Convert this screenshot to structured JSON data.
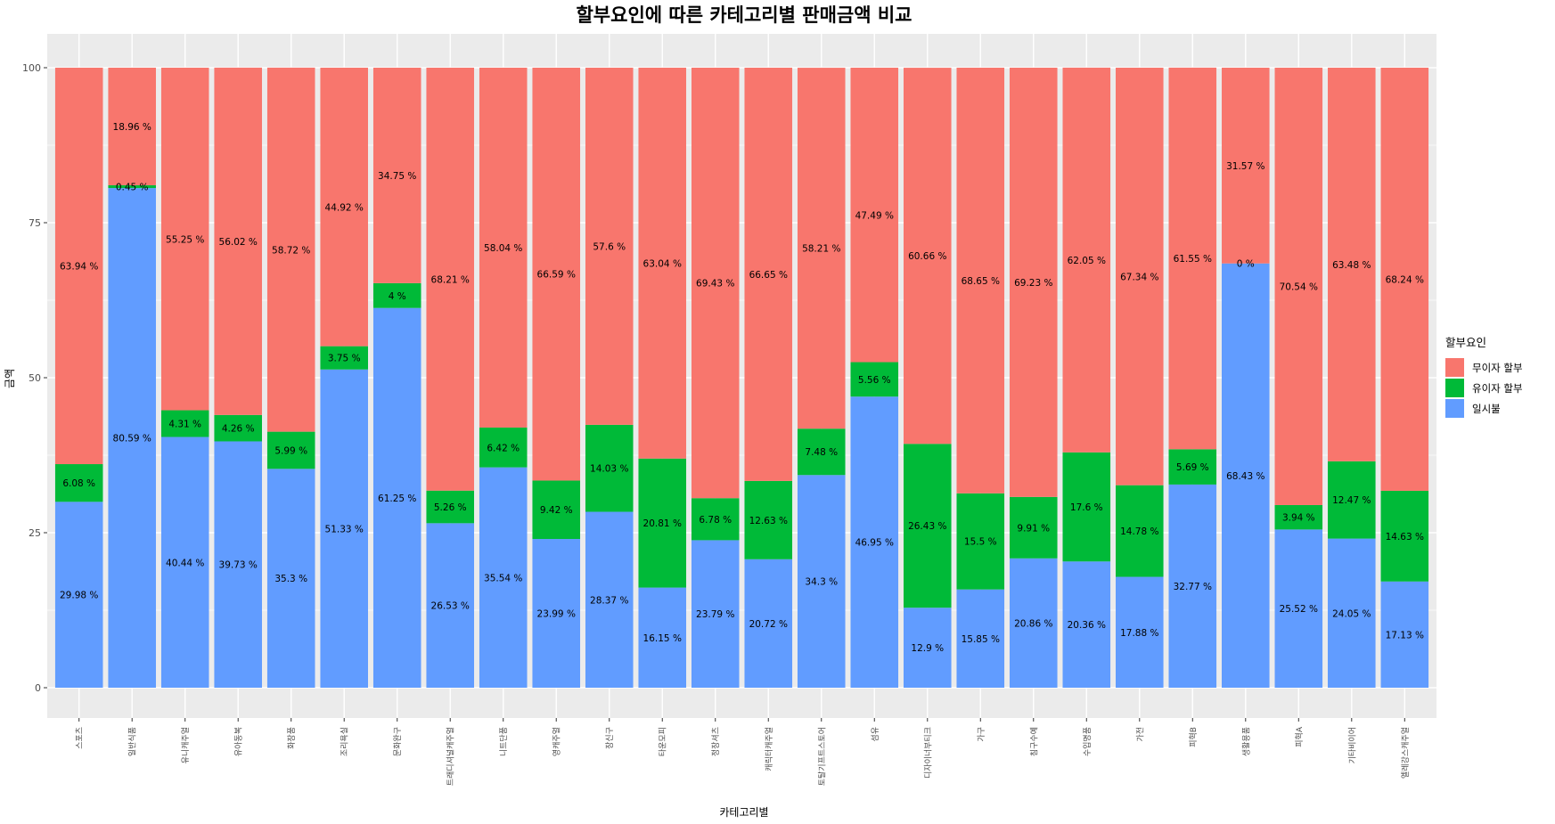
{
  "chart_data": {
    "type": "bar",
    "stacked": true,
    "title": "할부요인에 따른 카테고리별 판매금액 비교",
    "xlabel": "카테고리별",
    "ylabel": "금액",
    "ylim": [
      0,
      100
    ],
    "yticks": [
      0,
      25,
      50,
      75,
      100
    ],
    "grid": true,
    "legend": {
      "title": "할부요인",
      "placement": "right"
    },
    "categories": [
      "스포츠",
      "일반식품",
      "유니캐주얼",
      "유아동복",
      "화장품",
      "조리욕실",
      "문화완구",
      "트래디셔널캐주얼",
      "니트단품",
      "영캐주얼",
      "장신구",
      "타운모피",
      "정장셔츠",
      "캐릭터캐주얼",
      "토탈기프트스토어",
      "섬유",
      "디자이너부티크",
      "가구",
      "침구수예",
      "수입명품",
      "가전",
      "피혁B",
      "생활용품",
      "피혁A",
      "기타비이어",
      "엘레강스캐주얼"
    ],
    "series": [
      {
        "name": "일시불",
        "color": "#619CFF",
        "values": [
          29.98,
          80.59,
          40.44,
          39.73,
          35.3,
          51.33,
          61.25,
          26.53,
          35.54,
          23.99,
          28.37,
          16.15,
          23.79,
          20.72,
          34.3,
          46.95,
          12.9,
          15.85,
          20.86,
          20.36,
          17.88,
          32.77,
          68.43,
          25.52,
          24.05,
          17.13
        ]
      },
      {
        "name": "유이자 할부",
        "color": "#00BA38",
        "values": [
          6.08,
          0.45,
          4.31,
          4.26,
          5.99,
          3.75,
          4,
          5.26,
          6.42,
          9.42,
          14.03,
          20.81,
          6.78,
          12.63,
          7.48,
          5.56,
          26.43,
          15.5,
          9.91,
          17.6,
          14.78,
          5.69,
          0,
          3.94,
          12.47,
          14.63
        ]
      },
      {
        "name": "무이자 할부",
        "color": "#F8766D",
        "values": [
          63.94,
          18.96,
          55.25,
          56.02,
          58.72,
          44.92,
          34.75,
          68.21,
          58.04,
          66.59,
          57.6,
          63.04,
          69.43,
          66.65,
          58.21,
          47.49,
          60.66,
          68.65,
          69.23,
          62.05,
          67.34,
          61.55,
          31.57,
          70.54,
          63.48,
          68.24
        ]
      }
    ],
    "label_suffix": " %",
    "panel_color": "#EBEBEB",
    "grid_color": "#FFFFFF"
  }
}
